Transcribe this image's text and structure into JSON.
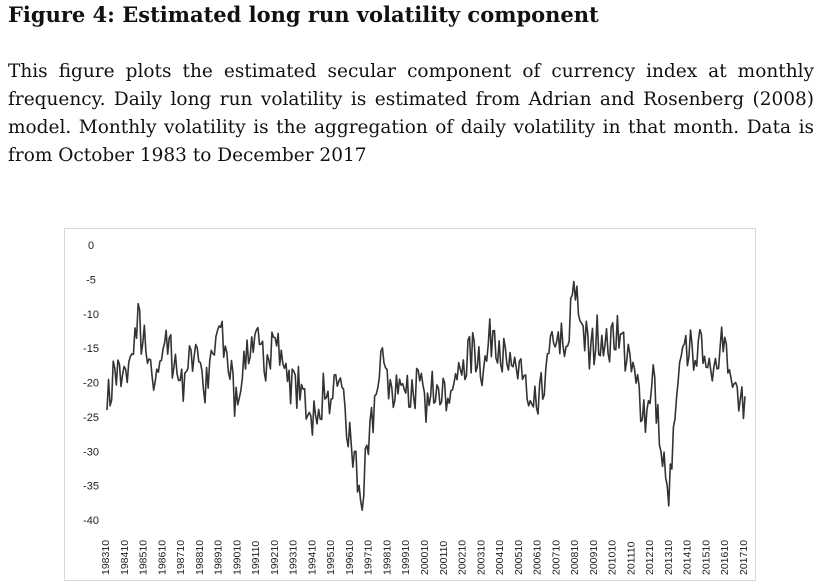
{
  "figure": {
    "title": "Figure 4: Estimated long run volatility component",
    "caption": "This figure plots the estimated secular component of currency index at monthly frequency. Daily long run volatility is estimated from Adrian and Rosenberg (2008) model. Monthly volatility is the aggregation of daily volatility in that month. Data is from October 1983 to December 2017"
  },
  "chart_data": {
    "type": "line",
    "title": "",
    "xlabel": "",
    "ylabel": "",
    "ylim": [
      -40,
      0
    ],
    "yticks": [
      0,
      -5,
      -10,
      -15,
      -20,
      -25,
      -30,
      -35,
      -40
    ],
    "ytick_labels": [
      "0",
      "-5",
      "-10",
      "-15",
      "-20",
      "-25",
      "-30",
      "-35",
      "-40"
    ],
    "xtick_labels": [
      "198310",
      "198410",
      "198510",
      "198610",
      "198710",
      "198810",
      "198910",
      "199010",
      "199110",
      "199210",
      "199310",
      "199410",
      "199510",
      "199610",
      "199710",
      "199810",
      "199910",
      "200010",
      "200110",
      "200210",
      "200310",
      "200410",
      "200510",
      "200610",
      "200710",
      "200810",
      "200910",
      "201010",
      "201110",
      "201210",
      "201310",
      "201410",
      "201510",
      "201610",
      "201710"
    ],
    "grid": false,
    "legend": "none",
    "line_color": "#333333",
    "series": [
      {
        "name": "",
        "x_start": "1983-10",
        "x_end": "2017-12",
        "anchors": [
          [
            "1983-10",
            -24
          ],
          [
            "1984-03",
            -18
          ],
          [
            "1984-08",
            -20
          ],
          [
            "1985-01",
            -17
          ],
          [
            "1985-06",
            -11
          ],
          [
            "1985-10",
            -15
          ],
          [
            "1986-04",
            -21
          ],
          [
            "1986-10",
            -14
          ],
          [
            "1987-04",
            -16
          ],
          [
            "1987-10",
            -20
          ],
          [
            "1988-03",
            -17
          ],
          [
            "1988-08",
            -14
          ],
          [
            "1989-01",
            -22
          ],
          [
            "1989-06",
            -16
          ],
          [
            "1989-11",
            -12
          ],
          [
            "1990-04",
            -17
          ],
          [
            "1990-09",
            -23
          ],
          [
            "1991-03",
            -16
          ],
          [
            "1991-09",
            -14
          ],
          [
            "1992-03",
            -17
          ],
          [
            "1992-09",
            -13
          ],
          [
            "1993-03",
            -17
          ],
          [
            "1993-09",
            -20
          ],
          [
            "1994-02",
            -21
          ],
          [
            "1994-08",
            -24
          ],
          [
            "1995-01",
            -26
          ],
          [
            "1995-05",
            -21
          ],
          [
            "1995-10",
            -24
          ],
          [
            "1996-04",
            -19
          ],
          [
            "1996-09",
            -28
          ],
          [
            "1997-02",
            -32
          ],
          [
            "1997-05",
            -38
          ],
          [
            "1997-10",
            -30
          ],
          [
            "1998-03",
            -21
          ],
          [
            "1998-08",
            -16
          ],
          [
            "1999-02",
            -23
          ],
          [
            "1999-07",
            -19
          ],
          [
            "2000-01",
            -22
          ],
          [
            "2000-06",
            -20
          ],
          [
            "2000-12",
            -24
          ],
          [
            "2001-06",
            -19
          ],
          [
            "2001-12",
            -22
          ],
          [
            "2002-06",
            -20
          ],
          [
            "2002-12",
            -17
          ],
          [
            "2003-06",
            -15
          ],
          [
            "2003-12",
            -18
          ],
          [
            "2004-06",
            -12
          ],
          [
            "2004-12",
            -16
          ],
          [
            "2005-06",
            -19
          ],
          [
            "2005-12",
            -17
          ],
          [
            "2006-06",
            -25
          ],
          [
            "2006-12",
            -23
          ],
          [
            "2007-06",
            -16
          ],
          [
            "2007-12",
            -13
          ],
          [
            "2008-05",
            -17
          ],
          [
            "2008-10",
            -6
          ],
          [
            "2009-03",
            -11
          ],
          [
            "2009-08",
            -16
          ],
          [
            "2010-02",
            -13
          ],
          [
            "2010-08",
            -15
          ],
          [
            "2011-02",
            -12
          ],
          [
            "2011-08",
            -16
          ],
          [
            "2012-02",
            -20
          ],
          [
            "2012-08",
            -25
          ],
          [
            "2013-01",
            -19
          ],
          [
            "2013-06",
            -30
          ],
          [
            "2013-11",
            -37
          ],
          [
            "2014-04",
            -23
          ],
          [
            "2014-09",
            -14
          ],
          [
            "2015-03",
            -16
          ],
          [
            "2015-09",
            -15
          ],
          [
            "2016-03",
            -18
          ],
          [
            "2016-09",
            -13
          ],
          [
            "2017-03",
            -20
          ],
          [
            "2017-08",
            -24
          ],
          [
            "2017-12",
            -22
          ]
        ]
      }
    ]
  }
}
